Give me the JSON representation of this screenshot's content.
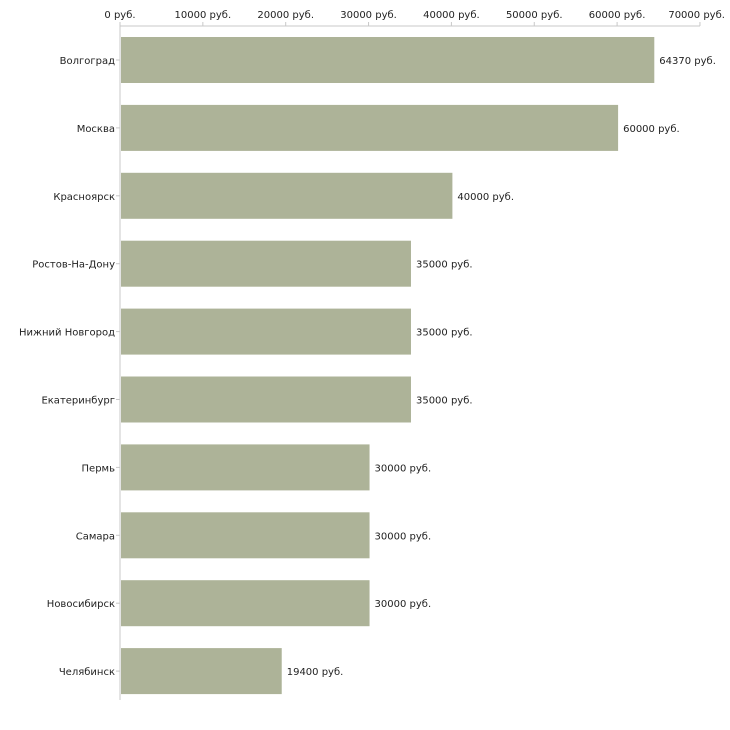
{
  "chart_data": {
    "type": "bar",
    "orientation": "horizontal",
    "title": "",
    "xlabel": "",
    "ylabel": "",
    "unit": "руб.",
    "xlim": [
      0,
      70000
    ],
    "x_ticks": [
      0,
      10000,
      20000,
      30000,
      40000,
      50000,
      60000,
      70000
    ],
    "x_tick_labels": [
      "0 руб.",
      "10000 руб.",
      "20000 руб.",
      "30000 руб.",
      "40000 руб.",
      "50000 руб.",
      "60000 руб.",
      "70000 руб."
    ],
    "axis_position": "top",
    "grid": false,
    "bar_color": "#adb398",
    "categories": [
      "Волгоград",
      "Москва",
      "Красноярск",
      "Ростов-На-Дону",
      "Нижний Новгород",
      "Екатеринбург",
      "Пермь",
      "Самара",
      "Новосибирск",
      "Челябинск"
    ],
    "values": [
      64370,
      60000,
      40000,
      35000,
      35000,
      35000,
      30000,
      30000,
      30000,
      19400
    ],
    "value_labels": [
      "64370 руб.",
      "60000 руб.",
      "40000 руб.",
      "35000 руб.",
      "35000 руб.",
      "35000 руб.",
      "30000 руб.",
      "30000 руб.",
      "30000 руб.",
      "19400 руб."
    ]
  }
}
